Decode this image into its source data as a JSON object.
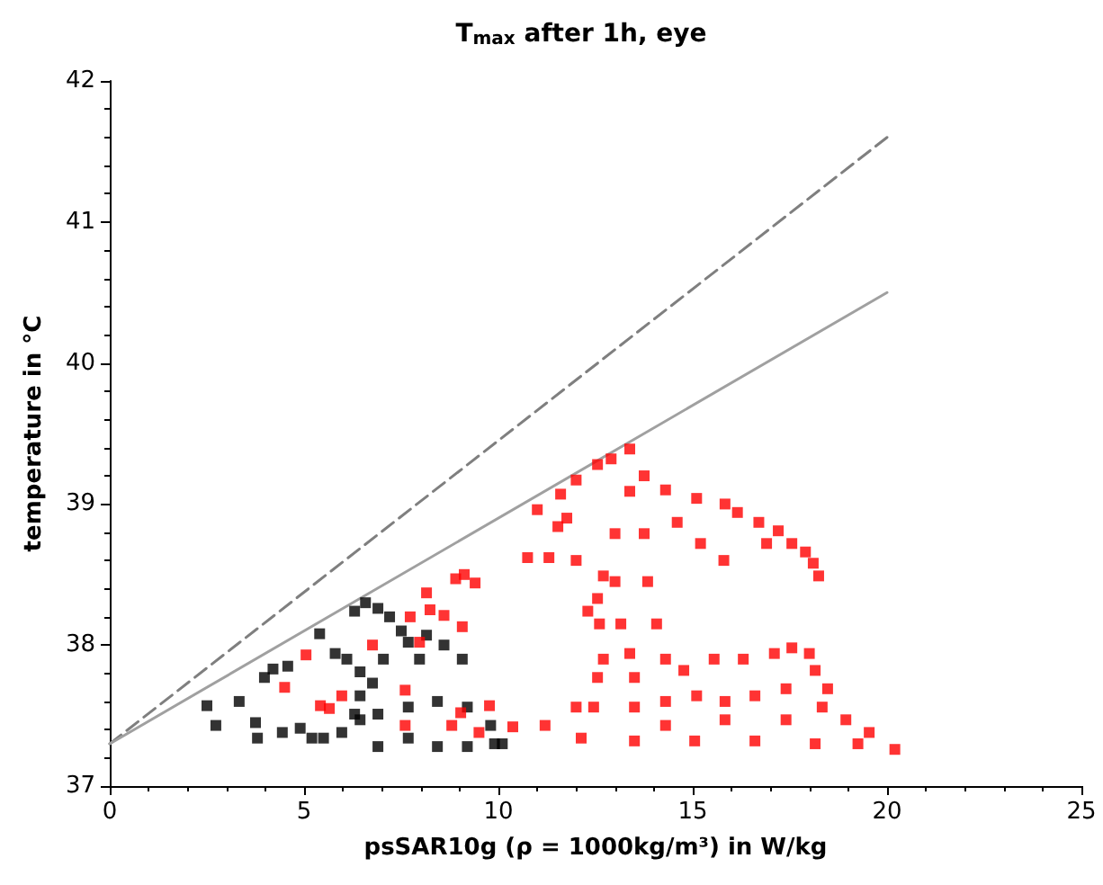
{
  "chart_data": {
    "type": "scatter",
    "title": "T$_{max}$ after 1h, eye",
    "xlabel": "psSAR10g (ρ = 1000kg/m³) in W/kg",
    "ylabel": "temperature in °C",
    "xlim": [
      0,
      25
    ],
    "xticks": [
      0,
      5,
      10,
      15,
      20,
      25
    ],
    "ylim": [
      37,
      42
    ],
    "yticks": [
      37,
      38,
      39,
      40,
      41,
      42
    ],
    "marker": "square",
    "series": [
      {
        "type": "line",
        "color": "#7f7f7f",
        "line_style": "dashed",
        "marker": "none",
        "x": [
          0,
          20
        ],
        "values": [
          37.3,
          41.6
        ]
      },
      {
        "type": "line",
        "color": "#a0a0a0",
        "line_style": "solid",
        "marker": "none",
        "x": [
          0,
          20
        ],
        "values": [
          37.3,
          40.5
        ]
      },
      {
        "color": "#000000",
        "x": [
          2.5,
          2.73,
          3.33,
          3.75,
          3.8,
          4.44,
          4.9,
          3.98,
          4.2,
          4.58,
          5.2,
          5.5,
          5.4,
          5.8,
          6.1,
          6.3,
          6.58,
          6.9,
          7.2,
          7.5,
          7.68,
          8.15,
          8.6,
          9.07,
          7.97,
          6.44,
          6.44,
          6.44,
          6.76,
          7.04,
          6.3,
          5.97,
          6.9,
          7.68,
          8.43,
          9.2,
          9.8,
          10.1,
          6.9,
          8.43,
          9.2,
          7.68,
          9.9
        ],
        "values": [
          37.57,
          37.43,
          37.6,
          37.45,
          37.34,
          37.38,
          37.41,
          37.77,
          37.83,
          37.85,
          37.34,
          37.34,
          38.08,
          37.94,
          37.9,
          38.24,
          38.3,
          38.26,
          38.2,
          38.1,
          38.02,
          38.07,
          38.0,
          37.9,
          37.9,
          37.81,
          37.64,
          37.47,
          37.73,
          37.9,
          37.51,
          37.38,
          37.51,
          37.56,
          37.6,
          37.56,
          37.43,
          37.3,
          37.28,
          37.28,
          37.28,
          37.34,
          37.3
        ]
      },
      {
        "color": "#ff0000",
        "x": [
          6.76,
          5.05,
          4.5,
          5.42,
          5.97,
          5.65,
          7.6,
          7.6,
          7.97,
          7.73,
          8.24,
          8.6,
          8.15,
          8.9,
          9.12,
          9.4,
          9.07,
          9.03,
          8.8,
          9.5,
          9.77,
          13.38,
          12.9,
          12.55,
          12.0,
          11.6,
          11.0,
          10.75,
          11.3,
          12.0,
          11.53,
          11.76,
          13.75,
          14.3,
          15.1,
          15.83,
          16.15,
          16.7,
          17.2,
          17.55,
          17.9,
          18.1,
          18.24,
          16.9,
          15.8,
          15.2,
          14.6,
          13.38,
          13.0,
          13.0,
          13.15,
          13.38,
          13.5,
          13.75,
          13.84,
          14.07,
          14.3,
          12.3,
          12.6,
          12.7,
          12.55,
          12.0,
          12.45,
          11.2,
          10.37,
          12.7,
          12.55,
          12.13,
          13.5,
          15.05,
          16.6,
          18.15,
          19.25,
          20.2,
          14.77,
          15.55,
          16.3,
          17.1,
          17.55,
          18.0,
          18.15,
          18.47,
          18.33,
          18.94,
          19.54,
          17.4,
          16.6,
          15.83,
          15.1,
          14.3,
          13.5,
          15.83,
          17.4,
          14.3
        ],
        "values": [
          38.0,
          37.93,
          37.7,
          37.57,
          37.64,
          37.55,
          37.68,
          37.43,
          38.02,
          38.2,
          38.25,
          38.21,
          38.37,
          38.47,
          38.5,
          38.44,
          38.13,
          37.52,
          37.43,
          37.38,
          37.57,
          39.39,
          39.32,
          39.28,
          39.17,
          39.07,
          38.96,
          38.62,
          38.62,
          38.6,
          38.84,
          38.9,
          39.2,
          39.1,
          39.04,
          39.0,
          38.94,
          38.87,
          38.81,
          38.72,
          38.66,
          38.58,
          38.49,
          38.72,
          38.6,
          38.72,
          38.87,
          39.09,
          38.79,
          38.45,
          38.15,
          37.94,
          37.77,
          38.79,
          38.45,
          38.15,
          37.9,
          38.24,
          38.15,
          37.9,
          37.77,
          37.56,
          37.56,
          37.43,
          37.42,
          38.49,
          38.33,
          37.34,
          37.32,
          37.32,
          37.32,
          37.3,
          37.3,
          37.26,
          37.82,
          37.9,
          37.9,
          37.94,
          37.98,
          37.94,
          37.82,
          37.69,
          37.56,
          37.47,
          37.38,
          37.69,
          37.64,
          37.6,
          37.64,
          37.6,
          37.56,
          37.47,
          37.47,
          37.43
        ]
      }
    ]
  }
}
